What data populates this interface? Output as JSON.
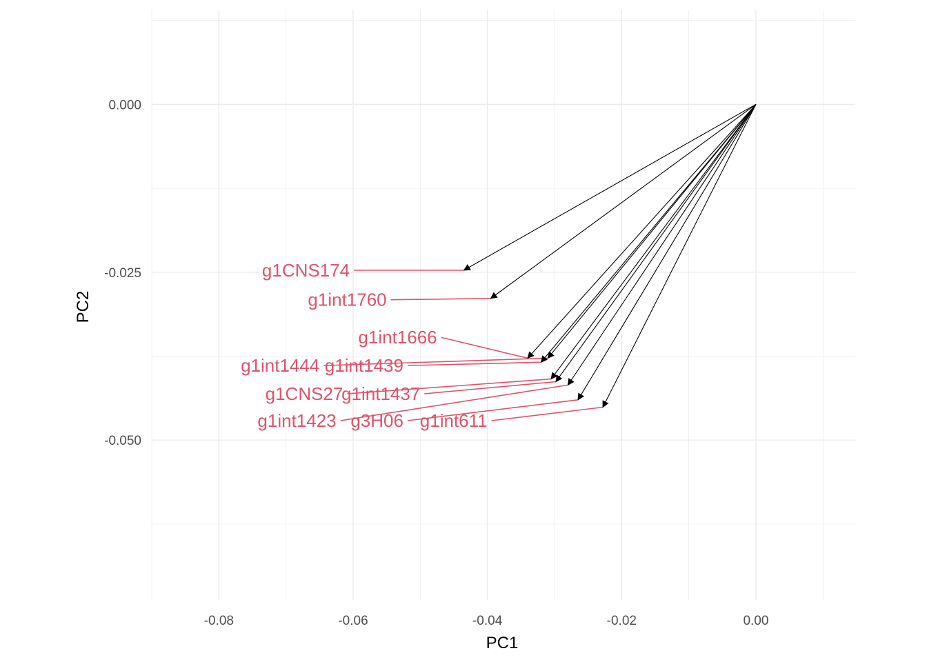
{
  "chart_data": {
    "type": "scatter",
    "subtype": "pca-loadings-biplot",
    "xlabel": "PC1",
    "ylabel": "PC2",
    "xlim": [
      -0.09,
      0.0148
    ],
    "ylim": [
      -0.0738,
      0.0141
    ],
    "x_ticks": [
      -0.08,
      -0.06,
      -0.04,
      -0.02,
      0.0
    ],
    "x_tick_labels": [
      "-0.08",
      "-0.06",
      "-0.04",
      "-0.02",
      "0.00"
    ],
    "y_ticks": [
      0.0,
      -0.025,
      -0.05
    ],
    "y_tick_labels": [
      "0.000",
      "-0.025",
      "-0.050"
    ],
    "grid": true,
    "arrow_origin": [
      0.0,
      0.0
    ],
    "colors": {
      "grid": "#ebebeb",
      "arrow": "#000000",
      "label": "#df536b",
      "tick": "#4d4d4d",
      "axis_title": "#000000"
    },
    "series": [
      {
        "name": "g1CNS174",
        "x": -0.0435,
        "y": -0.0247,
        "label_x": -0.0605,
        "label_y": -0.0247
      },
      {
        "name": "g1int1760",
        "x": -0.0395,
        "y": -0.0289,
        "label_x": -0.055,
        "label_y": -0.0291
      },
      {
        "name": "g1int1666",
        "x": -0.034,
        "y": -0.0378,
        "label_x": -0.0475,
        "label_y": -0.0347
      },
      {
        "name": "g1int1444",
        "x": -0.031,
        "y": -0.0378,
        "label_x": -0.065,
        "label_y": -0.0389
      },
      {
        "name": "g1int1439",
        "x": -0.032,
        "y": -0.0384,
        "label_x": -0.0525,
        "label_y": -0.0389
      },
      {
        "name": "g1CNS27",
        "x": -0.0305,
        "y": -0.0409,
        "label_x": -0.0615,
        "label_y": -0.0431
      },
      {
        "name": "g1int1437",
        "x": -0.0298,
        "y": -0.0413,
        "label_x": -0.05,
        "label_y": -0.0431
      },
      {
        "name": "g1int1423",
        "x": -0.028,
        "y": -0.0418,
        "label_x": -0.0625,
        "label_y": -0.0471
      },
      {
        "name": "g3H06",
        "x": -0.0265,
        "y": -0.044,
        "label_x": -0.0525,
        "label_y": -0.0471
      },
      {
        "name": "g1int611",
        "x": -0.0228,
        "y": -0.0451,
        "label_x": -0.04,
        "label_y": -0.0471
      }
    ]
  }
}
